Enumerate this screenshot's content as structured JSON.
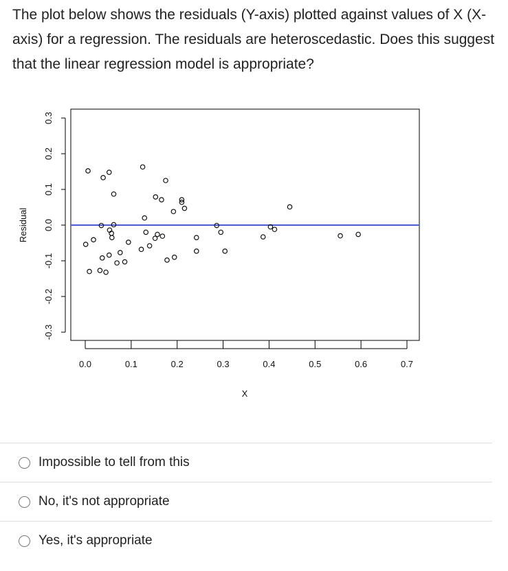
{
  "question": "The plot below shows the residuals (Y-axis) plotted against values of X (X-axis) for a regression. The residuals are heteroscedastic. Does this suggest that the linear regression model is appropriate?",
  "chart_data": {
    "type": "scatter",
    "xlabel": "X",
    "ylabel": "Residual",
    "xlim": [
      0.0,
      0.7
    ],
    "ylim": [
      -0.3,
      0.3
    ],
    "xticks": [
      "0.0",
      "0.1",
      "0.2",
      "0.3",
      "0.4",
      "0.5",
      "0.6",
      "0.7"
    ],
    "yticks": [
      "-0.3",
      "-0.2",
      "-0.1",
      "0.0",
      "0.1",
      "0.2",
      "0.3"
    ],
    "reference_line": {
      "y": 0,
      "color": "#4a5ad8"
    },
    "grid": false,
    "points": [
      [
        0.006,
        0.152
      ],
      [
        0.039,
        0.133
      ],
      [
        0.052,
        0.148
      ],
      [
        0.125,
        0.163
      ],
      [
        0.175,
        0.125
      ],
      [
        0.062,
        0.087
      ],
      [
        0.153,
        0.079
      ],
      [
        0.166,
        0.071
      ],
      [
        0.21,
        0.071
      ],
      [
        0.21,
        0.064
      ],
      [
        0.216,
        0.047
      ],
      [
        0.192,
        0.038
      ],
      [
        0.129,
        0.02
      ],
      [
        0.035,
        -0.001
      ],
      [
        0.062,
        0.001
      ],
      [
        0.053,
        -0.014
      ],
      [
        0.057,
        -0.023
      ],
      [
        0.058,
        -0.035
      ],
      [
        0.018,
        -0.041
      ],
      [
        0.001,
        -0.054
      ],
      [
        0.132,
        -0.02
      ],
      [
        0.157,
        -0.026
      ],
      [
        0.152,
        -0.037
      ],
      [
        0.168,
        -0.031
      ],
      [
        0.242,
        -0.035
      ],
      [
        0.094,
        -0.048
      ],
      [
        0.122,
        -0.068
      ],
      [
        0.14,
        -0.058
      ],
      [
        0.242,
        -0.073
      ],
      [
        0.076,
        -0.077
      ],
      [
        0.052,
        -0.084
      ],
      [
        0.037,
        -0.092
      ],
      [
        0.194,
        -0.09
      ],
      [
        0.178,
        -0.098
      ],
      [
        0.069,
        -0.106
      ],
      [
        0.086,
        -0.103
      ],
      [
        0.009,
        -0.13
      ],
      [
        0.032,
        -0.127
      ],
      [
        0.045,
        -0.132
      ],
      [
        0.445,
        0.051
      ],
      [
        0.286,
        -0.001
      ],
      [
        0.295,
        -0.02
      ],
      [
        0.304,
        -0.073
      ],
      [
        0.403,
        -0.005
      ],
      [
        0.412,
        -0.012
      ],
      [
        0.387,
        -0.033
      ],
      [
        0.555,
        -0.03
      ],
      [
        0.594,
        -0.026
      ]
    ]
  },
  "options": [
    {
      "label": "Impossible to tell from this"
    },
    {
      "label": "No, it's not appropriate"
    },
    {
      "label": "Yes, it's appropriate"
    }
  ]
}
